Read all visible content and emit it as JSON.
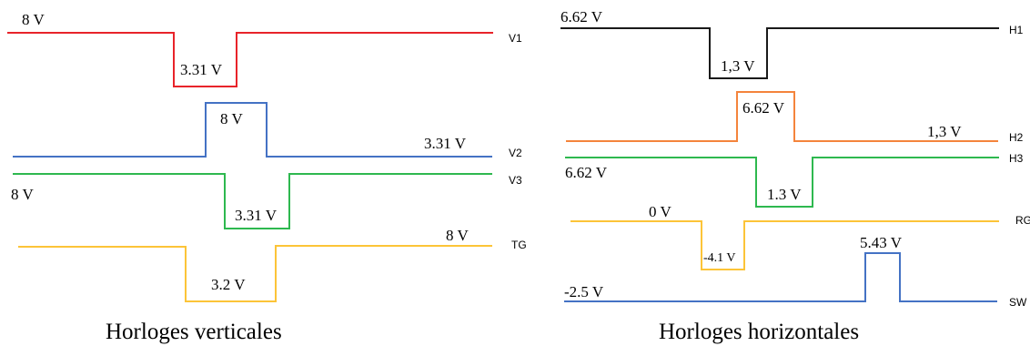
{
  "colors": {
    "V1": "#e8232a",
    "V2": "#4472c4",
    "V3": "#2eb84f",
    "TG": "#fcc438",
    "H1": "#1a1a1a",
    "H2": "#f4843c",
    "H3": "#2eb84f",
    "RG": "#fcc438",
    "SW": "#4472c4"
  },
  "left_panel": {
    "caption": "Horloges verticales",
    "signals": [
      {
        "name": "V1",
        "labels": [
          "8 V",
          "3.31 V"
        ]
      },
      {
        "name": "V2",
        "labels": [
          "8 V",
          "3.31 V"
        ]
      },
      {
        "name": "V3",
        "labels": [
          "8 V",
          "3.31 V"
        ]
      },
      {
        "name": "TG",
        "labels": [
          "8 V",
          "3.2 V"
        ]
      }
    ]
  },
  "right_panel": {
    "caption": "Horloges horizontales",
    "signals": [
      {
        "name": "H1",
        "labels": [
          "6.62 V",
          "1,3 V"
        ]
      },
      {
        "name": "H2",
        "labels": [
          "6.62 V",
          "1,3 V"
        ]
      },
      {
        "name": "H3",
        "labels": [
          "6.62 V",
          "1.3 V"
        ]
      },
      {
        "name": "RG",
        "labels": [
          "0 V",
          "-4.1 V"
        ]
      },
      {
        "name": "SW",
        "labels": [
          "-2.5 V",
          "5.43 V"
        ]
      }
    ]
  }
}
